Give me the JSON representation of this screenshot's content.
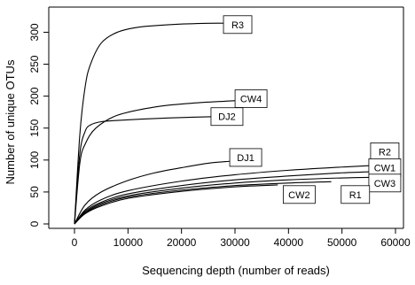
{
  "chart_data": {
    "type": "line",
    "title": "",
    "xlabel": "Sequencing depth (number of reads)",
    "ylabel": "Number of unique OTUs",
    "xlim": [
      0,
      60000
    ],
    "ylim": [
      0,
      320
    ],
    "xticks": [
      0,
      10000,
      20000,
      30000,
      40000,
      50000,
      60000
    ],
    "xtick_labels": [
      "0",
      "10000",
      "20000",
      "30000",
      "40000",
      "50000",
      "60000"
    ],
    "yticks": [
      0,
      50,
      100,
      150,
      200,
      250,
      300
    ],
    "ytick_labels": [
      "0",
      "50",
      "100",
      "150",
      "200",
      "250",
      "300"
    ],
    "grid": false,
    "legend": "none (curves labeled directly)",
    "series": [
      {
        "name": "R3",
        "x": [
          0,
          1000,
          2000,
          3000,
          5000,
          8000,
          12000,
          18000,
          25000,
          30000
        ],
        "values": [
          0,
          140,
          215,
          250,
          283,
          300,
          308,
          312,
          314,
          314
        ]
      },
      {
        "name": "CW4",
        "x": [
          0,
          1000,
          2000,
          4000,
          8000,
          15000,
          22000,
          28000,
          33000
        ],
        "values": [
          0,
          95,
          125,
          150,
          170,
          183,
          189,
          192,
          194
        ]
      },
      {
        "name": "DJ2",
        "x": [
          0,
          1000,
          2000,
          3000,
          5000,
          8000,
          15000,
          22000,
          27000
        ],
        "values": [
          0,
          110,
          145,
          155,
          160,
          162,
          165,
          167,
          168
        ]
      },
      {
        "name": "DJ1",
        "x": [
          0,
          2000,
          5000,
          10000,
          15000,
          20000,
          25000,
          29000
        ],
        "values": [
          0,
          30,
          50,
          68,
          80,
          88,
          95,
          98
        ]
      },
      {
        "name": "R2",
        "x": [
          0,
          2000,
          5000,
          10000,
          20000,
          30000,
          40000,
          50000,
          57000
        ],
        "values": [
          0,
          22,
          38,
          52,
          67,
          77,
          84,
          89,
          92
        ]
      },
      {
        "name": "CW1",
        "x": [
          0,
          2000,
          5000,
          10000,
          20000,
          30000,
          40000,
          50000,
          57000
        ],
        "values": [
          0,
          20,
          34,
          47,
          60,
          69,
          75,
          80,
          82
        ]
      },
      {
        "name": "CW3",
        "x": [
          0,
          2000,
          5000,
          10000,
          20000,
          30000,
          40000,
          50000,
          56000
        ],
        "values": [
          0,
          18,
          32,
          44,
          56,
          64,
          69,
          72,
          73
        ]
      },
      {
        "name": "R1",
        "x": [
          0,
          2000,
          5000,
          10000,
          20000,
          30000,
          40000,
          48000
        ],
        "values": [
          0,
          17,
          30,
          42,
          53,
          60,
          64,
          66
        ]
      },
      {
        "name": "CW2",
        "x": [
          0,
          2000,
          5000,
          10000,
          20000,
          30000,
          38000
        ],
        "values": [
          0,
          16,
          28,
          40,
          51,
          58,
          61
        ]
      }
    ],
    "annotations": [
      {
        "text": "R3",
        "x": 30500,
        "y": 312
      },
      {
        "text": "CW4",
        "x": 33000,
        "y": 196
      },
      {
        "text": "DJ2",
        "x": 28500,
        "y": 168
      },
      {
        "text": "DJ1",
        "x": 32000,
        "y": 104
      },
      {
        "text": "R2",
        "x": 58000,
        "y": 113
      },
      {
        "text": "CW1",
        "x": 58000,
        "y": 88
      },
      {
        "text": "CW3",
        "x": 58000,
        "y": 64
      },
      {
        "text": "CW2",
        "x": 42000,
        "y": 46
      },
      {
        "text": "R1",
        "x": 52500,
        "y": 46
      }
    ]
  }
}
